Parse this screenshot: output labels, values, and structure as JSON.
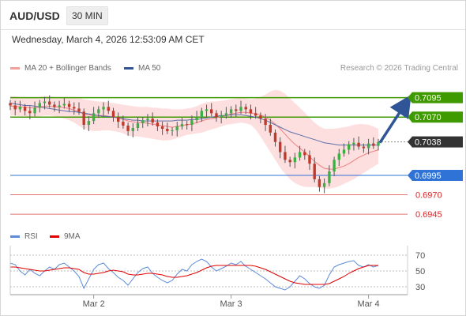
{
  "header": {
    "symbol": "AUD/USD",
    "timeframe": "30 MIN"
  },
  "date_text": "Wednesday, March 4, 2026 12:53:09 AM CET",
  "legend": {
    "bollinger": "MA 20 + Bollinger Bands",
    "ma50": "MA 50"
  },
  "credit": "Research © 2026 Trading Central",
  "rsi_legend": {
    "rsi": "RSI",
    "ma": "9MA"
  },
  "colors": {
    "up": "#3cb043",
    "down": "#c0392b",
    "green": "#3f9a00",
    "blue": "#2f73d6",
    "red": "#e57373",
    "dark": "#333333",
    "band": "#fdd9d9"
  },
  "chart_data": [
    {
      "type": "candlestick",
      "x_labels": [
        "Mar 2",
        "Mar 3",
        "Mar 4"
      ],
      "price_range": [
        0.6937,
        0.7118
      ],
      "price_levels": [
        {
          "label": "0.7095",
          "value": 0.7095,
          "kind": "resistance"
        },
        {
          "label": "0.7070",
          "value": 0.707,
          "kind": "resistance"
        },
        {
          "label": "0.7038",
          "value": 0.7038,
          "kind": "current"
        },
        {
          "label": "0.6995",
          "value": 0.6995,
          "kind": "pivot"
        },
        {
          "label": "0.6970",
          "value": 0.697,
          "kind": "support"
        },
        {
          "label": "0.6945",
          "value": 0.6945,
          "kind": "support"
        }
      ],
      "forecast": {
        "from": 0.7038,
        "to": 0.7095
      },
      "close": [
        0.7085,
        0.708,
        0.7083,
        0.7078,
        0.7075,
        0.7082,
        0.7088,
        0.709,
        0.7086,
        0.7083,
        0.7085,
        0.7087,
        0.7083,
        0.7081,
        0.7077,
        0.706,
        0.7065,
        0.7075,
        0.708,
        0.7083,
        0.7078,
        0.707,
        0.7064,
        0.7059,
        0.7052,
        0.7056,
        0.7062,
        0.7066,
        0.7068,
        0.7063,
        0.7058,
        0.7055,
        0.7052,
        0.7053,
        0.7058,
        0.7061,
        0.706,
        0.7066,
        0.707,
        0.7078,
        0.708,
        0.7075,
        0.707,
        0.7072,
        0.7075,
        0.708,
        0.7078,
        0.7083,
        0.708,
        0.7075,
        0.7072,
        0.7068,
        0.706,
        0.705,
        0.7038,
        0.7025,
        0.7015,
        0.7012,
        0.7018,
        0.7025,
        0.7021,
        0.701,
        0.699,
        0.698,
        0.6985,
        0.7,
        0.7015,
        0.7023,
        0.7028,
        0.7035,
        0.7037,
        0.7032,
        0.703,
        0.7036,
        0.7033,
        0.7038
      ],
      "ma50": [
        0.7088,
        0.7087,
        0.7086,
        0.7085,
        0.7085,
        0.7084,
        0.7083,
        0.7082,
        0.7081,
        0.708,
        0.7079,
        0.7078,
        0.7077,
        0.7077,
        0.7076,
        0.7075,
        0.7074,
        0.7073,
        0.7072,
        0.7071,
        0.7071,
        0.707,
        0.7069,
        0.7068,
        0.7067,
        0.7066,
        0.7066,
        0.7065,
        0.7065,
        0.7065,
        0.7065,
        0.7065,
        0.7065,
        0.7065,
        0.7066,
        0.7066,
        0.7066,
        0.7067,
        0.7067,
        0.7068,
        0.7069,
        0.707,
        0.7071,
        0.7072,
        0.7072,
        0.7073,
        0.7073,
        0.7073,
        0.7072,
        0.7071,
        0.707,
        0.7068,
        0.7066,
        0.7063,
        0.706,
        0.7057,
        0.7054,
        0.7051,
        0.7049,
        0.7047,
        0.7045,
        0.7043,
        0.7041,
        0.7039,
        0.7037,
        0.7036,
        0.7035,
        0.7034,
        0.7034,
        0.7034,
        0.7034,
        0.7034,
        0.7034,
        0.7034,
        0.7034,
        0.7034
      ],
      "ma20": [
        0.7084,
        0.7084,
        0.7083,
        0.7083,
        0.7082,
        0.7082,
        0.7083,
        0.7084,
        0.7084,
        0.7083,
        0.7083,
        0.7082,
        0.7081,
        0.7079,
        0.7077,
        0.7074,
        0.7073,
        0.7072,
        0.7072,
        0.7072,
        0.7071,
        0.707,
        0.7069,
        0.7067,
        0.7065,
        0.7064,
        0.7063,
        0.7063,
        0.7062,
        0.7061,
        0.706,
        0.7059,
        0.7058,
        0.7057,
        0.7058,
        0.7059,
        0.706,
        0.7061,
        0.7063,
        0.7065,
        0.7067,
        0.7068,
        0.7069,
        0.7071,
        0.7072,
        0.7074,
        0.7075,
        0.7076,
        0.7076,
        0.7075,
        0.7074,
        0.7073,
        0.707,
        0.7066,
        0.7061,
        0.7055,
        0.7048,
        0.7041,
        0.7035,
        0.703,
        0.7025,
        0.7019,
        0.7013,
        0.7008,
        0.7004,
        0.7003,
        0.7003,
        0.7005,
        0.7007,
        0.701,
        0.7014,
        0.7018,
        0.7021,
        0.7024,
        0.7026,
        0.7028
      ],
      "bb_upper": [
        0.7097,
        0.7097,
        0.7096,
        0.7096,
        0.7095,
        0.7095,
        0.7096,
        0.7097,
        0.7097,
        0.7096,
        0.7096,
        0.7096,
        0.7096,
        0.7096,
        0.7095,
        0.7093,
        0.7092,
        0.7091,
        0.709,
        0.709,
        0.7089,
        0.7088,
        0.7087,
        0.7086,
        0.7085,
        0.7084,
        0.7083,
        0.7083,
        0.7083,
        0.7082,
        0.7082,
        0.7081,
        0.7081,
        0.708,
        0.708,
        0.708,
        0.7081,
        0.7082,
        0.7084,
        0.7087,
        0.7089,
        0.709,
        0.709,
        0.7091,
        0.7092,
        0.7093,
        0.7094,
        0.7095,
        0.7094,
        0.7093,
        0.7094,
        0.7096,
        0.7099,
        0.7103,
        0.7105,
        0.7104,
        0.71,
        0.7094,
        0.7088,
        0.7082,
        0.7076,
        0.7069,
        0.7063,
        0.7058,
        0.7055,
        0.7055,
        0.7055,
        0.7056,
        0.7057,
        0.7058,
        0.706,
        0.7061,
        0.7061,
        0.706,
        0.7058,
        0.7055
      ],
      "bb_lower": [
        0.7072,
        0.7072,
        0.7071,
        0.7071,
        0.707,
        0.707,
        0.7071,
        0.7072,
        0.7072,
        0.7071,
        0.707,
        0.7068,
        0.7066,
        0.7063,
        0.7059,
        0.7055,
        0.7053,
        0.7052,
        0.7052,
        0.7053,
        0.7053,
        0.7052,
        0.7051,
        0.7049,
        0.7046,
        0.7045,
        0.7045,
        0.7044,
        0.7043,
        0.7042,
        0.7041,
        0.704,
        0.704,
        0.7041,
        0.7043,
        0.7045,
        0.7047,
        0.7048,
        0.7049,
        0.705,
        0.7052,
        0.7054,
        0.7056,
        0.7058,
        0.706,
        0.7061,
        0.7062,
        0.7063,
        0.7062,
        0.706,
        0.7054,
        0.7045,
        0.7035,
        0.7025,
        0.7015,
        0.7005,
        0.6997,
        0.699,
        0.6985,
        0.6982,
        0.698,
        0.698,
        0.698,
        0.6979,
        0.6978,
        0.6978,
        0.6979,
        0.6981,
        0.6984,
        0.6987,
        0.699,
        0.6994,
        0.6998,
        0.7002,
        0.7006,
        0.701
      ]
    },
    {
      "type": "line",
      "name": "RSI",
      "y_ticks": [
        70,
        50,
        30
      ],
      "ylim": [
        20,
        80
      ],
      "rsi": [
        60,
        58,
        50,
        45,
        52,
        47,
        44,
        50,
        55,
        52,
        58,
        60,
        55,
        50,
        43,
        28,
        40,
        52,
        58,
        60,
        53,
        48,
        42,
        38,
        32,
        40,
        48,
        53,
        55,
        47,
        42,
        38,
        35,
        38,
        46,
        52,
        50,
        58,
        62,
        65,
        62,
        55,
        50,
        53,
        56,
        60,
        58,
        62,
        56,
        52,
        48,
        44,
        40,
        35,
        30,
        28,
        26,
        30,
        37,
        44,
        40,
        34,
        30,
        28,
        32,
        45,
        55,
        58,
        60,
        62,
        63,
        57,
        55,
        58,
        55,
        57
      ],
      "ma9": [
        55,
        55,
        54,
        53,
        52,
        51,
        50,
        50,
        51,
        52,
        53,
        54,
        54,
        53,
        52,
        48,
        46,
        46,
        47,
        48,
        50,
        51,
        50,
        49,
        46,
        45,
        45,
        46,
        47,
        47,
        46,
        45,
        43,
        42,
        42,
        43,
        44,
        46,
        48,
        51,
        54,
        56,
        57,
        57,
        57,
        57,
        57,
        57,
        57,
        57,
        56,
        54,
        52,
        49,
        46,
        43,
        40,
        37,
        35,
        34,
        33,
        33,
        33,
        33,
        33,
        34,
        37,
        40,
        43,
        47,
        50,
        53,
        55,
        57,
        57,
        57
      ]
    }
  ]
}
